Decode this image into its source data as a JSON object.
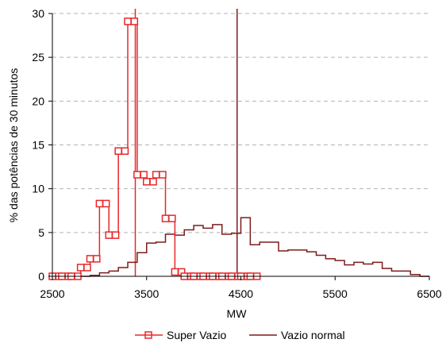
{
  "chart_data": {
    "type": "line",
    "title": "",
    "xlabel": "MW",
    "ylabel": "% das potências de 30 minutos",
    "xlim": [
      2500,
      6500
    ],
    "ylim": [
      0,
      30
    ],
    "xticks": [
      2500,
      3500,
      4500,
      5500,
      6500
    ],
    "xtick_labels": [
      "2500",
      "3500",
      "4500",
      "5500",
      "6500"
    ],
    "yticks": [
      0,
      5,
      10,
      15,
      20,
      25,
      30
    ],
    "ytick_labels": [
      "0",
      "5",
      "10",
      "15",
      "20",
      "25",
      "30"
    ],
    "grid": "horizontal dashed",
    "legend_position": "bottom",
    "series": [
      {
        "name": "Super Vazio",
        "color": "#e8282a",
        "style": "step",
        "marker": "square",
        "x": [
          2500,
          2600,
          2700,
          2800,
          2900,
          3000,
          3100,
          3200,
          3300,
          3400,
          3500,
          3600,
          3700,
          3800,
          3900,
          4000,
          4100,
          4200,
          4300,
          4400,
          4500,
          4600
        ],
        "y": [
          0,
          0,
          0,
          1,
          2,
          8.3,
          4.7,
          14.3,
          29.1,
          11.6,
          10.8,
          11.6,
          6.6,
          0.5,
          0,
          0,
          0,
          0,
          0,
          0,
          0,
          0
        ]
      },
      {
        "name": "Vazio normal",
        "color": "#7b1c1c",
        "style": "step",
        "x": [
          2500,
          2900,
          3000,
          3100,
          3200,
          3300,
          3400,
          3500,
          3600,
          3700,
          3800,
          3900,
          4000,
          4100,
          4200,
          4300,
          4400,
          4500,
          4600,
          4700,
          4800,
          4900,
          5000,
          5100,
          5200,
          5300,
          5400,
          5500,
          5600,
          5700,
          5800,
          5900,
          6000,
          6100,
          6200,
          6300,
          6400,
          6500
        ],
        "y": [
          0,
          0.1,
          0.4,
          0.6,
          1.0,
          1.6,
          2.7,
          3.8,
          3.9,
          4.8,
          4.7,
          5.3,
          5.8,
          5.5,
          5.9,
          4.8,
          4.9,
          6.7,
          3.6,
          3.9,
          3.9,
          2.9,
          3.0,
          3.0,
          2.8,
          2.4,
          2.0,
          1.8,
          1.3,
          1.6,
          1.4,
          1.6,
          0.9,
          0.6,
          0.6,
          0.2,
          0,
          0
        ]
      }
    ],
    "reference_lines": [
      {
        "x": 3380,
        "color": "#e8282a"
      },
      {
        "x": 4460,
        "color": "#7b1c1c"
      }
    ]
  }
}
